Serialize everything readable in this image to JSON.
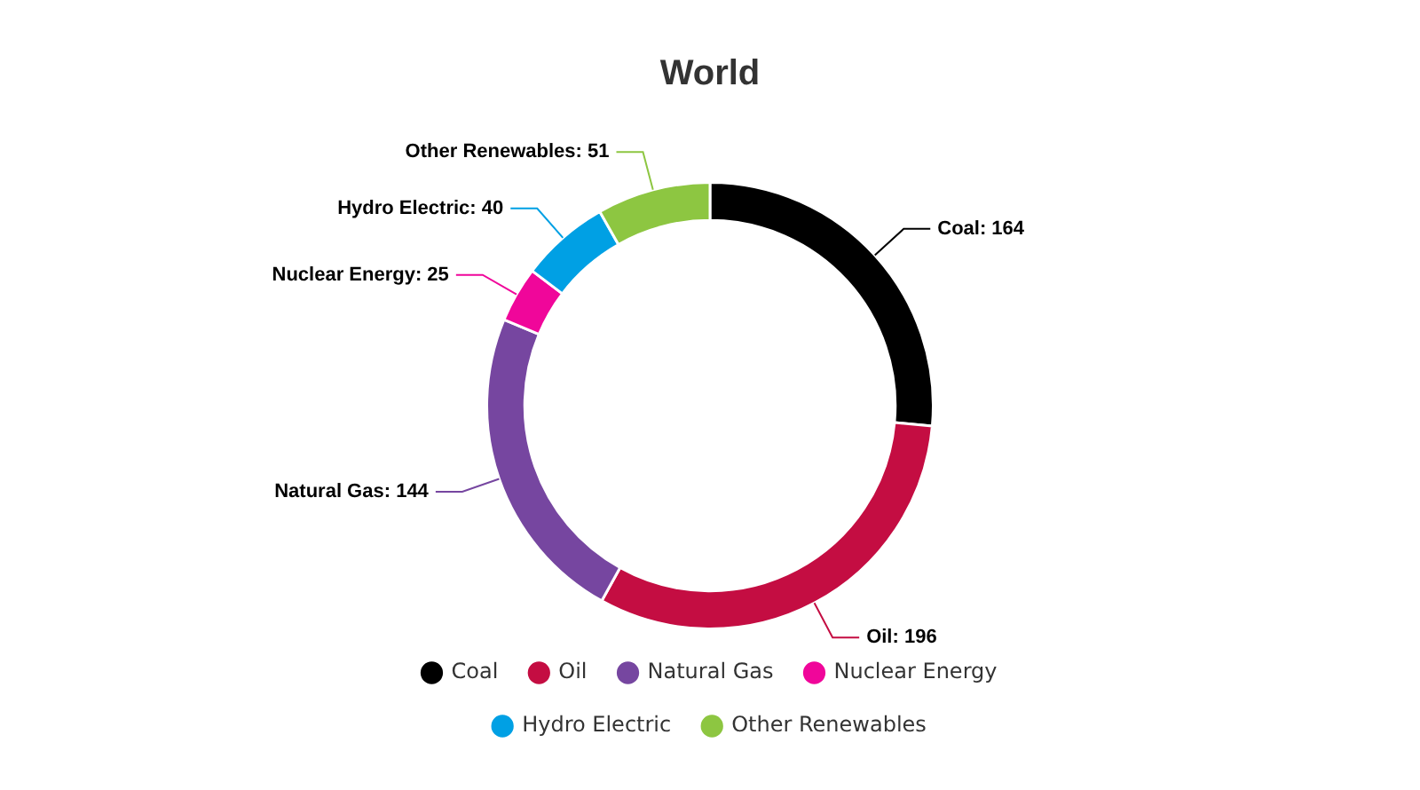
{
  "chart_data": {
    "type": "donut",
    "title": "World",
    "categories": [
      "Coal",
      "Oil",
      "Natural Gas",
      "Nuclear Energy",
      "Hydro Electric",
      "Other Renewables"
    ],
    "values": [
      164,
      196,
      144,
      25,
      40,
      51
    ],
    "value_labels": [
      "Coal: 164",
      "Oil: 196",
      "Natural Gas: 144",
      "Nuclear Energy: 25",
      "Hydro Electric: 40",
      "Other Renewables: 51"
    ],
    "colors": [
      "#000000",
      "#c40d42",
      "#7646a0",
      "#f0069a",
      "#00a0e4",
      "#8dc641"
    ],
    "legend": "bottom"
  }
}
